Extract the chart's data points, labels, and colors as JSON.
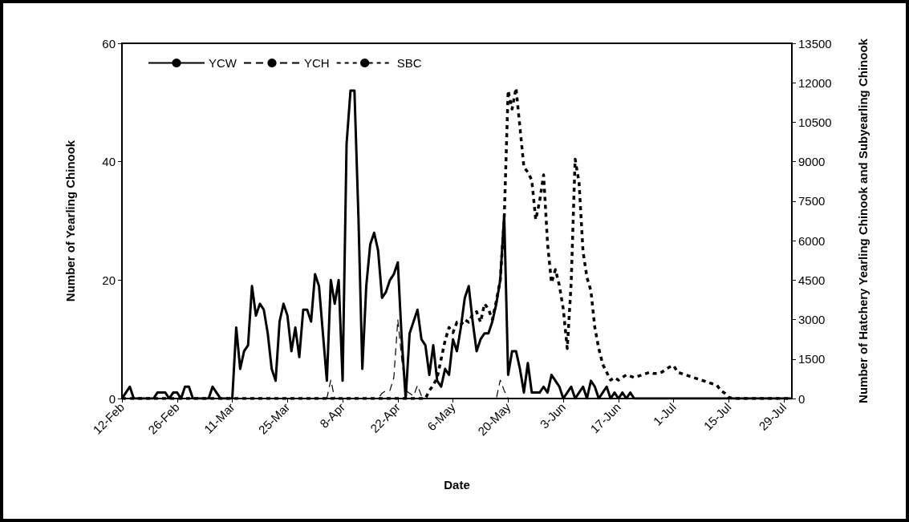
{
  "chart_data": {
    "type": "line",
    "xlabel": "Date",
    "ylabel": "Number of Yearling Chinook",
    "y2label": "Number of Hatchery Yearling Chinook and Subyearling Chinook",
    "x": [
      "--02-12",
      "--02-13",
      "--02-14",
      "--02-15",
      "--02-16",
      "--02-17",
      "--02-18",
      "--02-19",
      "--02-20",
      "--02-21",
      "--02-22",
      "--02-23",
      "--02-24",
      "--02-25",
      "--02-26",
      "--02-27",
      "--02-28",
      "--02-29",
      "--03-01",
      "--03-02",
      "--03-03",
      "--03-04",
      "--03-05",
      "--03-06",
      "--03-07",
      "--03-08",
      "--03-09",
      "--03-10",
      "--03-11",
      "--03-12",
      "--03-13",
      "--03-14",
      "--03-15",
      "--03-16",
      "--03-17",
      "--03-18",
      "--03-19",
      "--03-20",
      "--03-21",
      "--03-22",
      "--03-23",
      "--03-24",
      "--03-25",
      "--03-26",
      "--03-27",
      "--03-28",
      "--03-29",
      "--03-30",
      "--03-31",
      "--04-01",
      "--04-02",
      "--04-03",
      "--04-04",
      "--04-05",
      "--04-06",
      "--04-07",
      "--04-08",
      "--04-09",
      "--04-10",
      "--04-11",
      "--04-12",
      "--04-13",
      "--04-14",
      "--04-15",
      "--04-16",
      "--04-17",
      "--04-18",
      "--04-19",
      "--04-20",
      "--04-21",
      "--04-22",
      "--04-23",
      "--04-24",
      "--04-25",
      "--04-26",
      "--04-27",
      "--04-28",
      "--04-29",
      "--04-30",
      "--05-01",
      "--05-02",
      "--05-03",
      "--05-04",
      "--05-05",
      "--05-06",
      "--05-07",
      "--05-08",
      "--05-09",
      "--05-10",
      "--05-11",
      "--05-12",
      "--05-13",
      "--05-14",
      "--05-15",
      "--05-16",
      "--05-17",
      "--05-18",
      "--05-19",
      "--05-20",
      "--05-21",
      "--05-22",
      "--05-23",
      "--05-24",
      "--05-25",
      "--05-26",
      "--05-27",
      "--05-28",
      "--05-29",
      "--05-30",
      "--05-31",
      "--06-01",
      "--06-02",
      "--06-03",
      "--06-04",
      "--06-05",
      "--06-06",
      "--06-07",
      "--06-08",
      "--06-09",
      "--06-10",
      "--06-11",
      "--06-12",
      "--06-13",
      "--06-14",
      "--06-15",
      "--06-16",
      "--06-17",
      "--06-18",
      "--06-19",
      "--06-20",
      "--06-21",
      "--06-22",
      "--06-23",
      "--06-24",
      "--06-25",
      "--06-26",
      "--06-27",
      "--06-28",
      "--06-29",
      "--06-30",
      "--07-01",
      "--07-02",
      "--07-03",
      "--07-04",
      "--07-05",
      "--07-06",
      "--07-07",
      "--07-08",
      "--07-09",
      "--07-10",
      "--07-11",
      "--07-12",
      "--07-13",
      "--07-14",
      "--07-15",
      "--07-16",
      "--07-17",
      "--07-18",
      "--07-19",
      "--07-20",
      "--07-21",
      "--07-22",
      "--07-23",
      "--07-24",
      "--07-25",
      "--07-26",
      "--07-27",
      "--07-28",
      "--07-29",
      "--07-30",
      "--07-31"
    ],
    "series": [
      {
        "name": "YCW",
        "color": "#000000",
        "line_style": "solid",
        "values": [
          0,
          1,
          2,
          0,
          0,
          0,
          0,
          0,
          0,
          1,
          1,
          1,
          0,
          1,
          1,
          0,
          2,
          2,
          0,
          0,
          0,
          0,
          0,
          2,
          1,
          0,
          0,
          0,
          0,
          12,
          5,
          8,
          9,
          19,
          14,
          16,
          15,
          11,
          5,
          3,
          13,
          16,
          14,
          8,
          12,
          7,
          15,
          15,
          13,
          21,
          19,
          11,
          3,
          20,
          16,
          20,
          3,
          43,
          52,
          52,
          31,
          5,
          19,
          26,
          28,
          25,
          17,
          18,
          20,
          21,
          23,
          10,
          0,
          11,
          13,
          15,
          10,
          9,
          4,
          9,
          3,
          2,
          5,
          4,
          10,
          8,
          12,
          17,
          19,
          13,
          8,
          10,
          11,
          11,
          13,
          16,
          20,
          31,
          4,
          8,
          8,
          5,
          1,
          6,
          1,
          1,
          1,
          2,
          1,
          4,
          3,
          2,
          0,
          1,
          2,
          0,
          1,
          2,
          0,
          3,
          2,
          0,
          1,
          2,
          0,
          1,
          0,
          1,
          0,
          1,
          0,
          0,
          0,
          0,
          0,
          0,
          0,
          0,
          0,
          0,
          0,
          0,
          0,
          0,
          0,
          0,
          0,
          0,
          0,
          0,
          0,
          0,
          0,
          0,
          0,
          0,
          0,
          0,
          0,
          0,
          0,
          0,
          0,
          0,
          0,
          0,
          0,
          0,
          0,
          0,
          0
        ]
      },
      {
        "name": "YCH",
        "color": "#000000",
        "line_style": "dashed",
        "axis": "y2",
        "values": [
          0,
          0,
          0,
          0,
          0,
          0,
          0,
          0,
          0,
          0,
          0,
          0,
          0,
          0,
          0,
          0,
          0,
          0,
          0,
          0,
          0,
          0,
          0,
          0,
          0,
          0,
          0,
          0,
          0,
          0,
          0,
          0,
          0,
          0,
          0,
          0,
          0,
          0,
          0,
          0,
          0,
          0,
          0,
          0,
          0,
          0,
          0,
          0,
          0,
          0,
          0,
          0,
          0,
          700,
          0,
          0,
          0,
          0,
          0,
          0,
          0,
          0,
          0,
          0,
          0,
          0,
          200,
          300,
          300,
          800,
          3000,
          1500,
          300,
          200,
          100,
          500,
          100,
          0,
          0,
          0,
          0,
          0,
          0,
          0,
          0,
          0,
          0,
          0,
          0,
          0,
          0,
          0,
          0,
          0,
          0,
          0,
          700,
          300,
          0,
          0,
          0,
          0,
          0,
          0,
          0,
          0,
          0,
          0,
          0,
          0,
          0,
          0,
          0,
          0,
          0,
          0,
          0,
          0,
          0,
          0,
          0,
          0,
          0,
          0,
          0,
          0,
          0,
          0,
          0,
          0,
          0,
          0,
          0,
          0,
          0,
          0,
          0,
          0,
          0,
          0,
          0,
          0,
          0,
          0,
          0,
          0,
          0,
          0,
          0,
          0,
          0,
          0,
          0,
          0,
          0,
          0,
          0,
          0,
          0,
          0,
          0,
          0,
          0,
          0,
          0,
          0,
          0,
          0,
          0,
          0,
          0
        ]
      },
      {
        "name": "SBC",
        "color": "#000000",
        "line_style": "dotted",
        "axis": "y2",
        "values": [
          0,
          0,
          0,
          0,
          0,
          0,
          0,
          0,
          0,
          0,
          0,
          0,
          0,
          0,
          0,
          0,
          0,
          0,
          0,
          0,
          0,
          0,
          0,
          0,
          0,
          0,
          0,
          0,
          0,
          0,
          0,
          0,
          0,
          0,
          0,
          0,
          0,
          0,
          0,
          0,
          0,
          0,
          0,
          0,
          0,
          0,
          0,
          0,
          0,
          0,
          0,
          0,
          0,
          0,
          0,
          0,
          0,
          0,
          0,
          0,
          0,
          0,
          0,
          0,
          0,
          0,
          0,
          0,
          0,
          0,
          0,
          0,
          0,
          0,
          0,
          0,
          0,
          0,
          300,
          500,
          800,
          1500,
          2200,
          2700,
          2500,
          2900,
          2800,
          3000,
          2900,
          3200,
          3300,
          2900,
          3600,
          3400,
          3000,
          3700,
          4500,
          6800,
          11700,
          11000,
          11800,
          10300,
          8800,
          8600,
          8300,
          6800,
          7500,
          8500,
          5900,
          4400,
          4900,
          4300,
          3400,
          1900,
          4400,
          9100,
          8200,
          5600,
          4600,
          4100,
          2700,
          1900,
          1300,
          1000,
          700,
          800,
          700,
          800,
          900,
          850,
          800,
          850,
          900,
          950,
          1000,
          950,
          950,
          1000,
          1100,
          1200,
          1250,
          1000,
          950,
          900,
          850,
          800,
          750,
          700,
          650,
          600,
          550,
          500,
          300,
          200,
          50,
          0,
          0,
          0,
          0,
          0,
          0,
          0,
          0,
          0,
          0,
          0,
          0,
          0,
          0,
          0,
          0
        ]
      }
    ],
    "xlim": [
      "--02-12",
      "--07-31"
    ],
    "xticks": [
      {
        "value": "--02-12",
        "label": "12-Feb"
      },
      {
        "value": "--02-26",
        "label": "26-Feb"
      },
      {
        "value": "--03-11",
        "label": "11-Mar"
      },
      {
        "value": "--03-25",
        "label": "25-Mar"
      },
      {
        "value": "--04-08",
        "label": "8-Apr"
      },
      {
        "value": "--04-22",
        "label": "22-Apr"
      },
      {
        "value": "--05-06",
        "label": "6-May"
      },
      {
        "value": "--05-20",
        "label": "20-May"
      },
      {
        "value": "--06-03",
        "label": "3-Jun"
      },
      {
        "value": "--06-17",
        "label": "17-Jun"
      },
      {
        "value": "--07-01",
        "label": "1-Jul"
      },
      {
        "value": "--07-15",
        "label": "15-Jul"
      },
      {
        "value": "--07-29",
        "label": "29-Jul"
      }
    ],
    "ylim": [
      0,
      60
    ],
    "yticks": [
      0,
      20,
      40,
      60
    ],
    "y2lim": [
      0,
      13500
    ],
    "y2ticks": [
      0,
      1500,
      3000,
      4500,
      6000,
      7500,
      9000,
      10500,
      12000,
      13500
    ],
    "grid": false,
    "legend": "top left",
    "marker": "none"
  }
}
